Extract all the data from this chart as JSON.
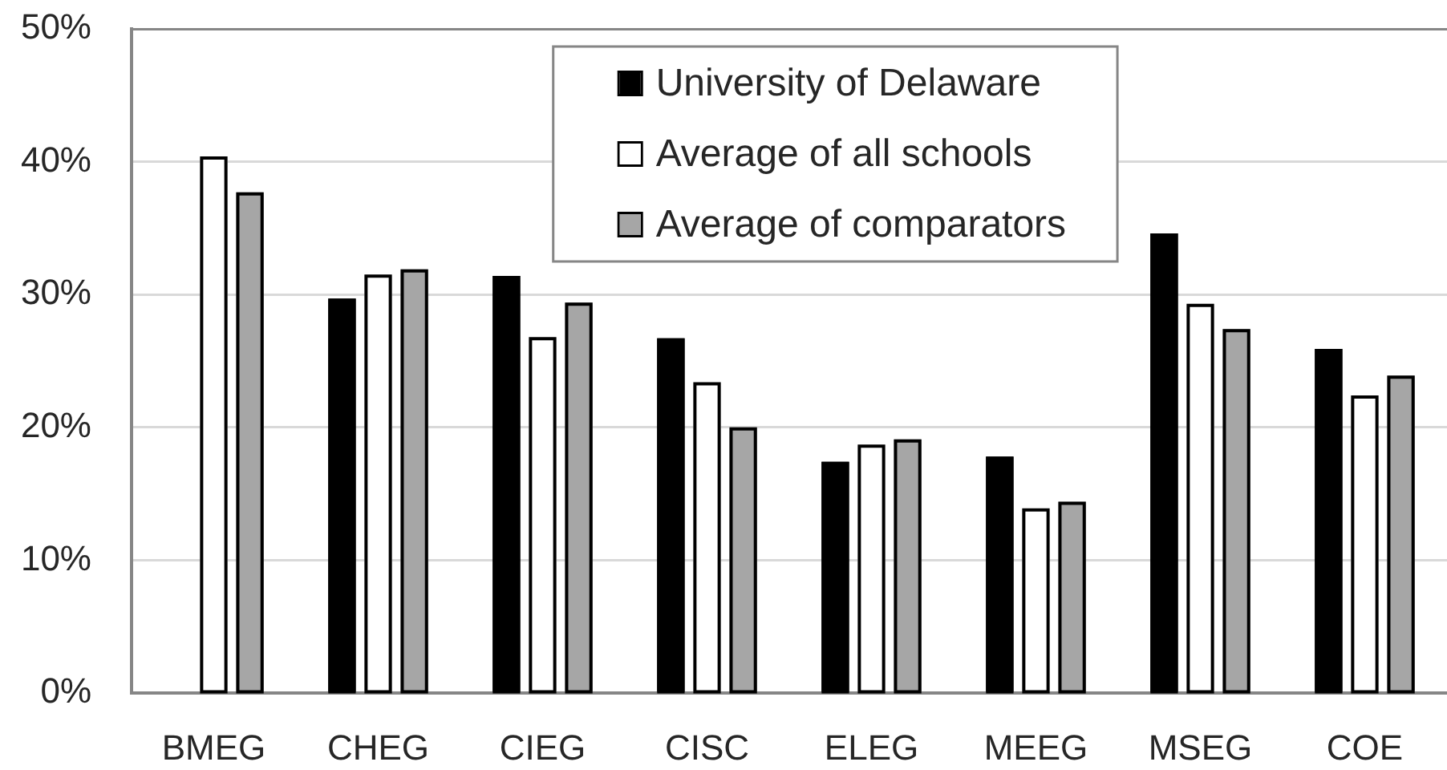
{
  "chart_data": {
    "type": "bar",
    "categories": [
      "BMEG",
      "CHEG",
      "CIEG",
      "CISC",
      "ELEG",
      "MEEG",
      "MSEG",
      "COE"
    ],
    "series": [
      {
        "name": "University of Delaware",
        "color": "#000000",
        "values": [
          null,
          29.7,
          31.4,
          26.7,
          17.4,
          17.8,
          34.6,
          25.9
        ]
      },
      {
        "name": "Average of all schools",
        "color": "#ffffff",
        "values": [
          40.4,
          31.5,
          26.8,
          23.4,
          18.7,
          13.9,
          29.3,
          22.4
        ]
      },
      {
        "name": "Average of comparators",
        "color": "#a6a6a6",
        "values": [
          37.7,
          31.9,
          29.4,
          20.0,
          19.1,
          14.4,
          27.4,
          23.9
        ]
      }
    ],
    "ylim": [
      0,
      50
    ],
    "yticks": [
      {
        "value": 0,
        "label": "0%"
      },
      {
        "value": 10,
        "label": "10%"
      },
      {
        "value": 20,
        "label": "20%"
      },
      {
        "value": 30,
        "label": "30%"
      },
      {
        "value": 40,
        "label": "40%"
      },
      {
        "value": 50,
        "label": "50%"
      }
    ],
    "grid": "y",
    "legend": "top"
  }
}
